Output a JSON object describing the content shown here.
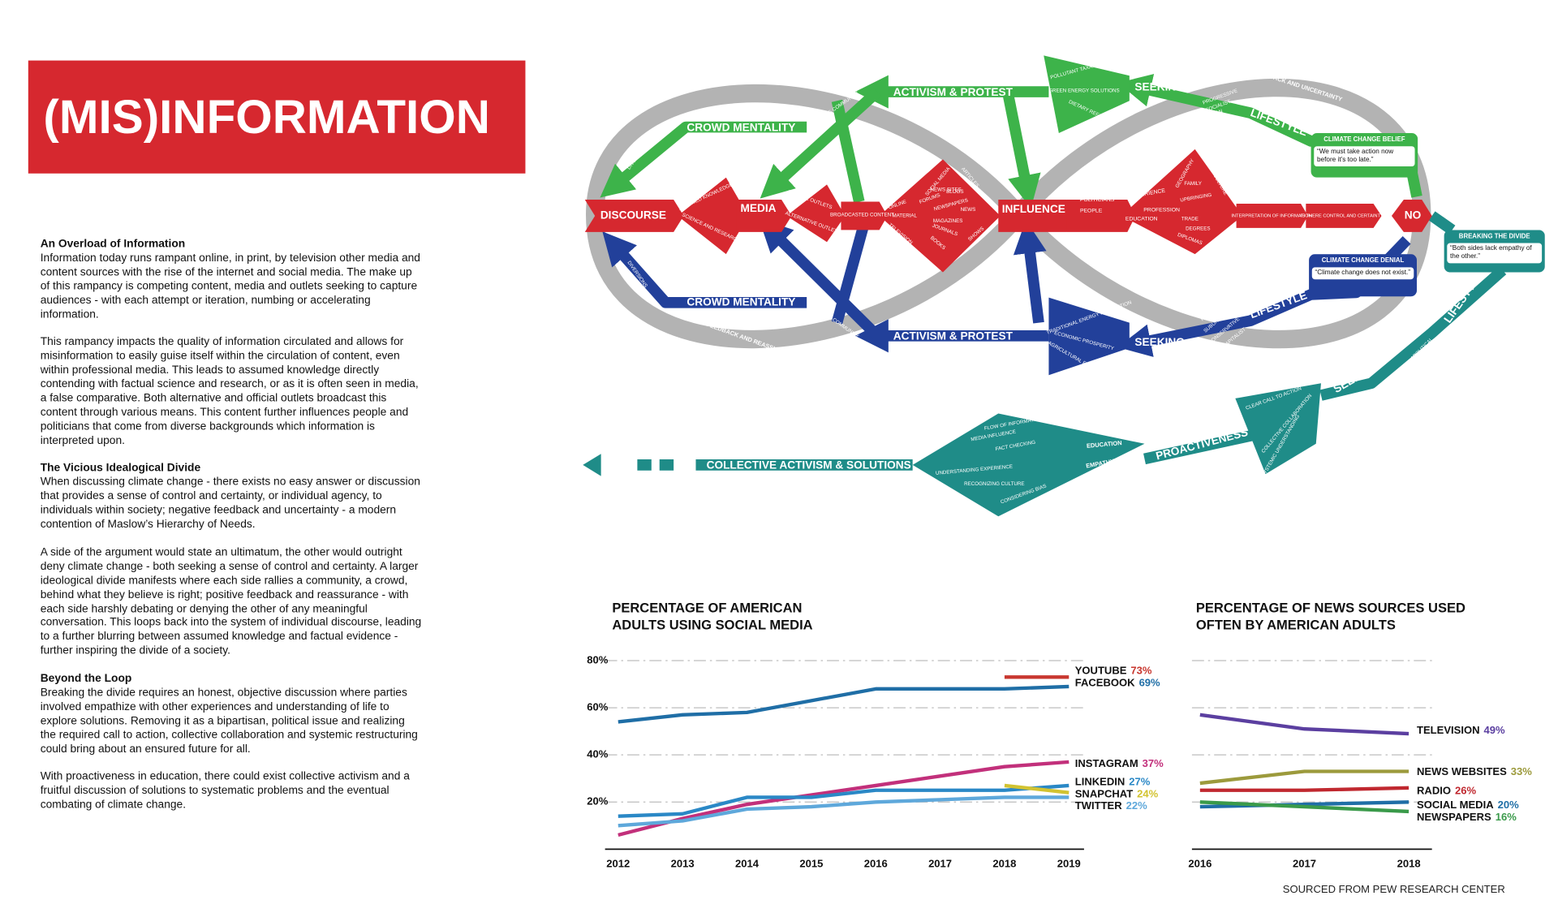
{
  "header": {
    "title": "(MIS)INFORMATION"
  },
  "sections": [
    {
      "heading": "An Overload of Information",
      "paragraphs": [
        "Information today runs rampant online, in print, by television other media and content sources with the rise of the internet and social media. The make up of this rampancy is competing content, media and outlets seeking to capture audiences - with each attempt or iteration, numbing or accelerating information.",
        "This rampancy impacts the quality of information circulated and allows for misinformation to easily guise itself within the circulation of content, even within professional media. This leads to assumed knowledge directly contending with factual science and research, or as it is often seen in media, a false comparative. Both alternative and official outlets broadcast this content through various means. This content further influences people and politicians that come from diverse backgrounds which information is interpreted upon."
      ]
    },
    {
      "heading": "The Vicious Idealogical Divide",
      "paragraphs": [
        "When discussing climate change - there exists no easy answer or discussion that provides a sense of control and certainty, or individual agency, to individuals within society; negative feedback and uncertainty - a modern contention of Maslow’s Hierarchy of Needs.",
        "A side of the argument would state an ultimatum, the other would outright deny climate change - both seeking a sense of control and certainty. A larger ideological divide manifests where each side rallies a community, a crowd, behind what they believe is right; positive feedback and reassurance - with each side harshly debating or denying the other of any meaningful conversation. This loops back into the system of individual discourse, leading to a further blurring between assumed knowledge and factual evidence - further inspiring the divide of a society."
      ]
    },
    {
      "heading": "Beyond the Loop",
      "paragraphs": [
        "Breaking the divide requires an honest, objective discussion where parties involved empathize with other experiences and understanding of life to explore solutions. Removing it as a bipartisan, political issue and realizing the required call to action, collective collaboration and systemic restructuring could bring about an ensured future for all.",
        "With proactiveness in education, there could exist collective activism and a fruitful discussion of solutions to systematic problems and the eventual combating of climate change."
      ]
    }
  ],
  "diagram": {
    "labels": [
      "DISCOURSE",
      "ASSUMED KNOWLEDGE",
      "SCIENCE AND RESEARCH",
      "MEDIA",
      "OFFICIAL OUTLETS",
      "ALTERNATIVE OUTLETS",
      "BROADCASTED CONTENT",
      "ONLINE",
      "MATERIAL",
      "TELEVISION",
      "SOCIAL MEDIA",
      "NEWS SITES",
      "FORUMS",
      "BLOGS",
      "ARTICLES",
      "NEWSPAPERS",
      "NEWS",
      "MAGAZINES",
      "JOURNALS",
      "BOOKS",
      "SHOWS",
      "INFLUENCE",
      "POLITICIANS",
      "PEOPLE",
      "EXPERIENCE",
      "GEOGRAPHY",
      "FAMILY",
      "CULTURE",
      "UPBRINGING",
      "PROFESSION",
      "EDUCATION",
      "TRADE",
      "DEGREES",
      "DIPLOMAS",
      "INTERPRETATION OF INFORMATION",
      "IS THERE CONTROL AND CERTAINTY?",
      "NO",
      "CROWD MENTALITY",
      "RALLYING COMMUNITY",
      "DIVERSIONS",
      "ACTIVISM & PROTEST",
      "POLLUTANT TAXATION",
      "GREEN ENERGY SOLUTIONS",
      "DIETARY REFORM",
      "SEEKING",
      "PROGRESSIVE",
      "SOCIALIST",
      "URBAN",
      "LIFESTYLE",
      "NEGATIVE FEEDBACK AND UNCERTAINTY",
      "CROWD MENTALITY",
      "RALLYING COMMUNITY",
      "DIVERSIONS",
      "ACTIVISM & PROTEST",
      "TRADITIONAL ENERGY PROTECTION",
      "ECONOMIC PROSPERITY",
      "AGRICULTURAL REFORM",
      "SEEKING",
      "RURAL",
      "SUBURBAN",
      "CONSERVATIVE",
      "CAPITALIST",
      "LIFESTYLE",
      "POSITIVE FEEDBACK AND REASSURANCE",
      "LIFESTYLE",
      "RURAL AND URBAN",
      "APOLITICAL",
      "SEEKING",
      "CLEAR CALL TO ACTION",
      "COLLECTIVE COLLABORATION",
      "SYSTEMIC UNDERSTANDING",
      "PROACTIVENESS",
      "FLOW OF INFORMATION",
      "MEDIA INFLUENCE",
      "FACT CHECKING",
      "EDUCATION",
      "EMPATHY",
      "UNDERSTANDING EXPERIENCE",
      "RECOGNIZING CULTURE",
      "CONSIDERING BIAS",
      "COLLECTIVE ACTIVISM & SOLUTIONS"
    ],
    "callouts": [
      {
        "title": "CLIMATE CHANGE BELIEF",
        "quote": "“We must take action now before it’s too late.”"
      },
      {
        "title": "CLIMATE CHANGE DENIAL",
        "quote": "“Climate change does not exist.”"
      },
      {
        "title": "BREAKING THE DIVIDE",
        "quote": "“Both sides lack empathy of the other.”"
      }
    ]
  },
  "chart_data": [
    {
      "type": "line",
      "title": "PERCENTAGE OF AMERICAN ADULTS USING SOCIAL MEDIA",
      "categories": [
        "2012",
        "2013",
        "2014",
        "2015",
        "2016",
        "2017",
        "2018",
        "2019"
      ],
      "ylim": [
        0,
        80
      ],
      "yticks": [
        {
          "value": 20,
          "label": "20%"
        },
        {
          "value": 40,
          "label": "40%"
        },
        {
          "value": 60,
          "label": "60%"
        },
        {
          "value": 80,
          "label": "80%"
        }
      ],
      "show_ytick_labels": true,
      "grid": true,
      "series": [
        {
          "name": "YOUTUBE",
          "color": "#c8372f",
          "values": [
            null,
            null,
            null,
            null,
            null,
            null,
            73,
            73
          ],
          "value_labels": [
            null,
            null,
            null,
            null,
            null,
            null,
            null,
            "73%"
          ]
        },
        {
          "name": "FACEBOOK",
          "color": "#1f6ea6",
          "values": [
            54,
            57,
            58,
            63,
            68,
            68,
            68,
            69
          ],
          "value_labels": [
            null,
            null,
            null,
            null,
            null,
            null,
            null,
            "69%"
          ]
        },
        {
          "name": "INSTAGRAM",
          "color": "#c2307b",
          "values": [
            6,
            13,
            19,
            23,
            27,
            31,
            35,
            37
          ],
          "value_labels": [
            null,
            null,
            null,
            null,
            null,
            null,
            null,
            "37%"
          ]
        },
        {
          "name": "LINKEDIN",
          "color": "#2a88c6",
          "values": [
            14,
            15,
            22,
            22,
            25,
            25,
            25,
            27
          ],
          "value_labels": [
            null,
            null,
            null,
            null,
            null,
            null,
            null,
            "27%"
          ]
        },
        {
          "name": "SNAPCHAT",
          "color": "#d2c331",
          "values": [
            null,
            null,
            null,
            null,
            null,
            null,
            27,
            24
          ],
          "value_labels": [
            null,
            null,
            null,
            null,
            null,
            null,
            null,
            "24%"
          ]
        },
        {
          "name": "TWITTER",
          "color": "#5ea8db",
          "values": [
            10,
            12,
            17,
            18,
            20,
            21,
            22,
            22
          ],
          "value_labels": [
            null,
            null,
            null,
            null,
            null,
            null,
            null,
            "22%"
          ]
        }
      ]
    },
    {
      "type": "line",
      "title": "PERCENTAGE OF NEWS SOURCES USED OFTEN BY AMERICAN ADULTS",
      "categories": [
        "2016",
        "2017",
        "2018"
      ],
      "ylim": [
        0,
        80
      ],
      "yticks": [
        20,
        40,
        60,
        80
      ],
      "show_ytick_labels": false,
      "grid": true,
      "series": [
        {
          "name": "TELEVISION",
          "color": "#5b3fa0",
          "values": [
            57,
            51,
            49
          ],
          "value_labels": [
            null,
            null,
            "49%"
          ]
        },
        {
          "name": "NEWS WEBSITES",
          "color": "#9c9a3c",
          "values": [
            28,
            33,
            33
          ],
          "value_labels": [
            null,
            null,
            "33%"
          ]
        },
        {
          "name": "RADIO",
          "color": "#c0282f",
          "values": [
            25,
            25,
            26
          ],
          "value_labels": [
            null,
            null,
            "26%"
          ]
        },
        {
          "name": "SOCIAL MEDIA",
          "color": "#1f6ea6",
          "values": [
            18,
            19,
            20
          ],
          "value_labels": [
            null,
            null,
            "20%"
          ]
        },
        {
          "name": "NEWSPAPERS",
          "color": "#3a9a4a",
          "values": [
            20,
            18,
            16
          ],
          "value_labels": [
            null,
            null,
            "16%"
          ]
        }
      ]
    }
  ],
  "footer": {
    "source": "SOURCED FROM PEW RESEARCH CENTER"
  }
}
